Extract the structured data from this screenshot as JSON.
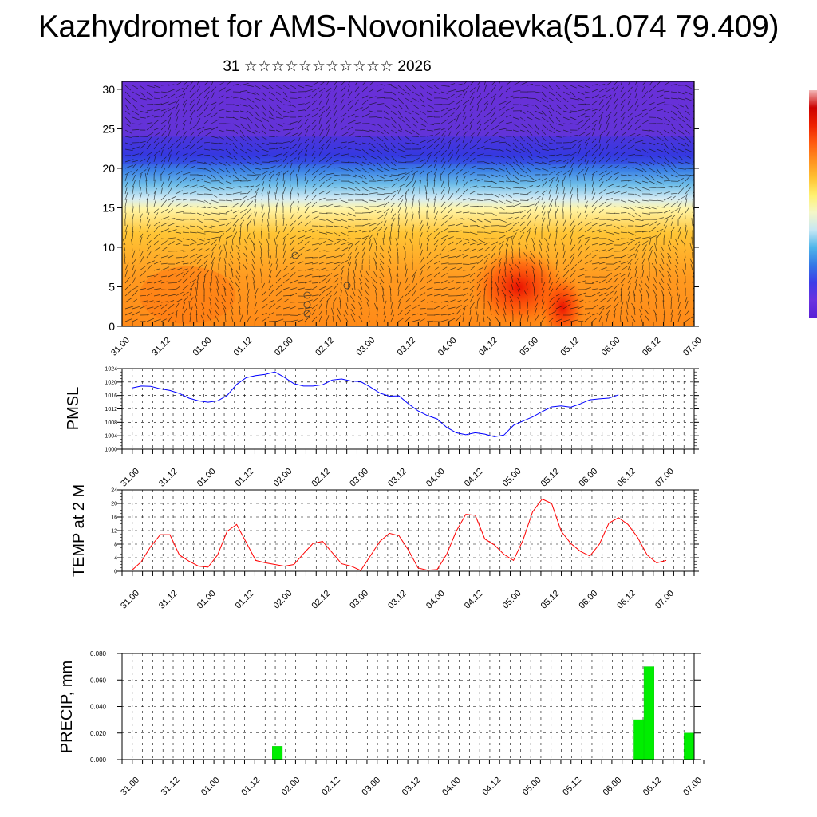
{
  "title": "Kazhydromet for AMS-Novonikolaevka(51.074 79.409)",
  "subtitle": {
    "day": "31",
    "month_glyphs": "☆☆☆☆☆☆☆☆☆☆☆",
    "year": "2026"
  },
  "colors": {
    "pmsl_line": "#0000ff",
    "temp_line": "#ff0000",
    "precip_bar": "#00ee00",
    "colorbar": [
      "#5a1fd6",
      "#6a32e0",
      "#3d3de8",
      "#3478e6",
      "#4fb5ea",
      "#c6e7f4",
      "#f5f7c8",
      "#fff170",
      "#ffc233",
      "#ff9020",
      "#ff5a10",
      "#ee2000",
      "#cc0000",
      "#f3b8b8"
    ]
  },
  "chart_data": [
    {
      "id": "cross-section",
      "type": "heatmap",
      "title": "",
      "xlabel": "",
      "ylabel": "",
      "ylim": [
        0,
        31
      ],
      "yticks": [
        0,
        5,
        10,
        15,
        20,
        25,
        30
      ],
      "xtick_labels": [
        "31.00",
        "31.12",
        "01.00",
        "01.12",
        "02.00",
        "02.12",
        "03.00",
        "03.12",
        "04.00",
        "04.12",
        "05.00",
        "05.12",
        "06.00",
        "06.12",
        "07.00"
      ],
      "overlay": "wind streamlines",
      "description_fields": "temperature shading with wind vectors"
    },
    {
      "id": "pmsl",
      "type": "line",
      "ylabel": "PMSL",
      "ylim": [
        1000,
        1024
      ],
      "yticks": [
        1000,
        1004,
        1008,
        1012,
        1016,
        1020,
        1024
      ],
      "xtick_labels": [
        "31.00",
        "31.12",
        "01.00",
        "01.12",
        "02.00",
        "02.12",
        "03.00",
        "03.12",
        "04.00",
        "04.12",
        "05.00",
        "05.12",
        "06.00",
        "06.12",
        "07.00"
      ],
      "x_hours_step": 3,
      "series": [
        {
          "name": "PMSL",
          "values": [
            1018.2,
            1018.8,
            1018.7,
            1018.0,
            1017.5,
            1016.6,
            1015.2,
            1014.4,
            1014.0,
            1014.4,
            1016.0,
            1019.3,
            1021.3,
            1021.9,
            1022.3,
            1023.0,
            1021.4,
            1019.5,
            1018.8,
            1018.8,
            1019.2,
            1020.6,
            1020.9,
            1020.3,
            1020.1,
            1018.5,
            1016.7,
            1015.8,
            1015.9,
            1013.5,
            1011.4,
            1010.0,
            1009.0,
            1006.5,
            1004.9,
            1004.3,
            1004.9,
            1004.5,
            1003.7,
            1004.2,
            1007.1,
            1008.4,
            1009.6,
            1011.2,
            1012.6,
            1012.9,
            1012.5,
            1013.5,
            1014.7,
            1015.0,
            1015.2,
            1016.2
          ]
        }
      ]
    },
    {
      "id": "temp",
      "type": "line",
      "ylabel": "TEMP at 2 M",
      "ylim": [
        0,
        24
      ],
      "yticks": [
        0,
        4,
        8,
        12,
        16,
        20,
        24
      ],
      "xtick_labels": [
        "31.00",
        "31.12",
        "01.00",
        "01.12",
        "02.00",
        "02.12",
        "03.00",
        "03.12",
        "04.00",
        "04.12",
        "05.00",
        "05.12",
        "06.00",
        "06.12",
        "07.00"
      ],
      "x_hours_step": 3,
      "series": [
        {
          "name": "TEMP at 2 M",
          "values": [
            0.2,
            2.8,
            7.3,
            10.8,
            10.8,
            4.8,
            3.0,
            1.5,
            1.2,
            4.8,
            11.8,
            13.8,
            8.5,
            3.2,
            2.5,
            2.0,
            1.5,
            2.0,
            5.2,
            8.2,
            8.8,
            5.5,
            2.2,
            1.5,
            0.2,
            4.5,
            8.8,
            11.2,
            10.5,
            6.2,
            1.0,
            0.3,
            0.5,
            5.0,
            11.8,
            16.8,
            16.5,
            9.5,
            7.8,
            5.0,
            3.2,
            9.2,
            17.5,
            21.3,
            20.0,
            11.8,
            8.2,
            5.9,
            4.5,
            8.0,
            14.2,
            15.8,
            13.8,
            10.0,
            4.8,
            2.5,
            3.2
          ]
        }
      ]
    },
    {
      "id": "precip",
      "type": "bar",
      "ylabel": "PRECIP, mm",
      "ylim": [
        0,
        0.08
      ],
      "yticks": [
        "0.000",
        "0.020",
        "0.040",
        "0.060",
        "0.080"
      ],
      "xtick_labels": [
        "31.00",
        "31.12",
        "01.00",
        "01.12",
        "02.00",
        "02.12",
        "03.00",
        "03.12",
        "04.00",
        "04.12",
        "05.00",
        "05.12",
        "06.00",
        "06.12",
        "07.00"
      ],
      "bar_hours": 3,
      "bars": [
        {
          "start_hour": 42,
          "value": 0.01
        },
        {
          "start_hour": 150,
          "value": 0.03
        },
        {
          "start_hour": 153,
          "value": 0.07
        },
        {
          "start_hour": 165,
          "value": 0.02
        }
      ]
    }
  ]
}
